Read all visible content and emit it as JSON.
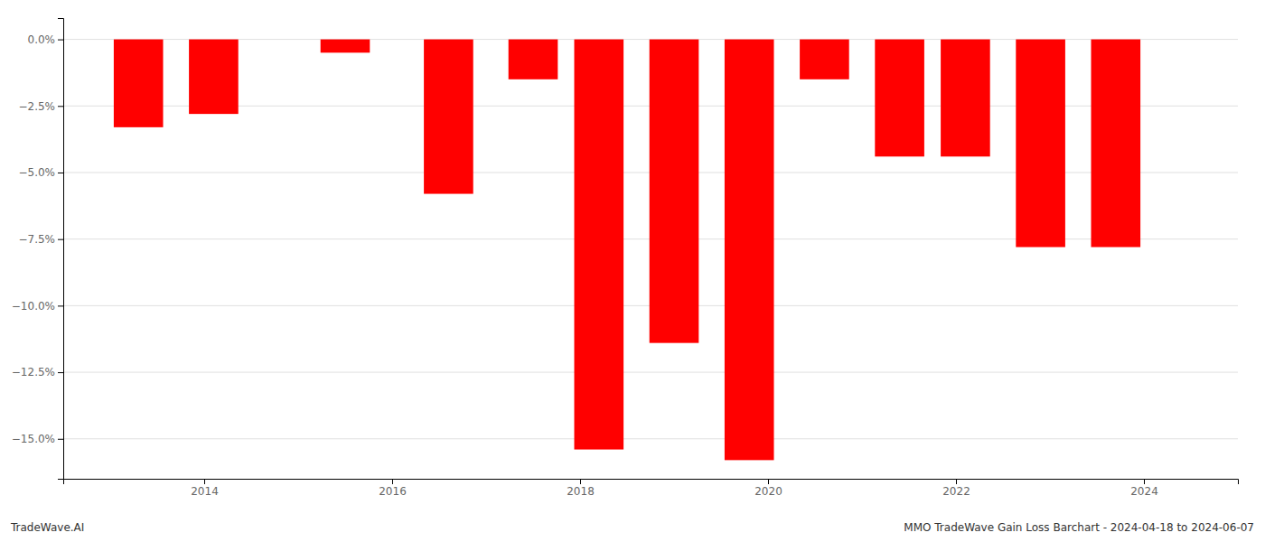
{
  "chart_data": {
    "type": "bar",
    "x": [
      2013.3,
      2014.1,
      2015.5,
      2016.6,
      2017.5,
      2018.2,
      2019.0,
      2019.8,
      2020.6,
      2021.4,
      2022.1,
      2022.9,
      2023.7
    ],
    "values": [
      -3.3,
      -2.8,
      -0.5,
      -5.8,
      -1.5,
      -15.4,
      -11.4,
      -15.8,
      -1.5,
      -4.4,
      -4.4,
      -7.8,
      -7.8
    ],
    "color": "#FF0000",
    "xlim": [
      2012.5,
      2025.0
    ],
    "xticks": [
      2014,
      2016,
      2018,
      2020,
      2022,
      2024
    ],
    "ylim": [
      -16.5,
      0.8
    ],
    "yticks": [
      {
        "value": 0.0,
        "label": "0.0%"
      },
      {
        "value": -2.5,
        "label": "−2.5%"
      },
      {
        "value": -5.0,
        "label": "−5.0%"
      },
      {
        "value": -7.5,
        "label": "−7.5%"
      },
      {
        "value": -10.0,
        "label": "−10.0%"
      },
      {
        "value": -12.5,
        "label": "−12.5%"
      },
      {
        "value": -15.0,
        "label": "−15.0%"
      }
    ],
    "grid": true,
    "annotations": [
      "TradeWave.AI",
      "MMO TradeWave Gain Loss Barchart - 2024-04-18 to 2024-06-07"
    ]
  }
}
